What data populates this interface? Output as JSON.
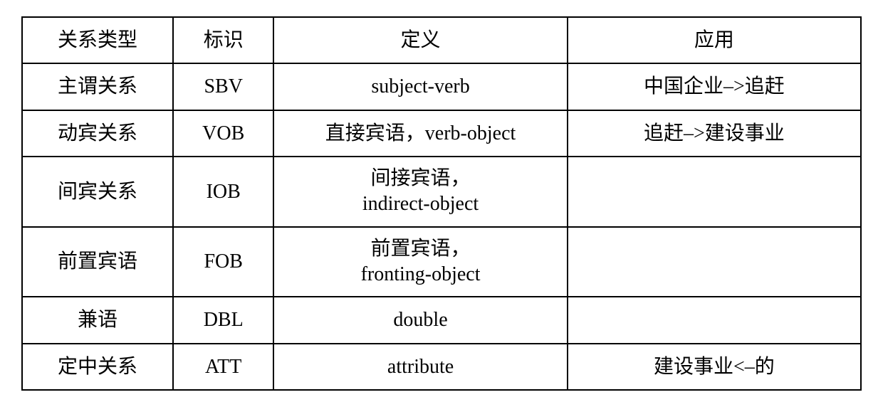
{
  "table": {
    "type": "table",
    "columns": [
      {
        "header": "关系类型",
        "width": "18%",
        "alignment": "center"
      },
      {
        "header": "标识",
        "width": "12%",
        "alignment": "center"
      },
      {
        "header": "定义",
        "width": "35%",
        "alignment": "center"
      },
      {
        "header": "应用",
        "width": "35%",
        "alignment": "center"
      }
    ],
    "rows": [
      {
        "relation": "主谓关系",
        "label": "SBV",
        "definition": "subject-verb",
        "application": "中国企业–>追赶"
      },
      {
        "relation": "动宾关系",
        "label": "VOB",
        "definition": "直接宾语，verb-object",
        "application": "追赶–>建设事业"
      },
      {
        "relation": "间宾关系",
        "label": "IOB",
        "definition_line1": "间接宾语，",
        "definition_line2": "indirect-object",
        "application": ""
      },
      {
        "relation": "前置宾语",
        "label": "FOB",
        "definition_line1": "前置宾语，",
        "definition_line2": "fronting-object",
        "application": ""
      },
      {
        "relation": "兼语",
        "label": "DBL",
        "definition": "double",
        "application": ""
      },
      {
        "relation": "定中关系",
        "label": "ATT",
        "definition": "attribute",
        "application": "建设事业<–的"
      }
    ],
    "styling": {
      "border_color": "#000000",
      "border_width": 2,
      "background_color": "#ffffff",
      "text_color": "#000000",
      "font_size": 28,
      "cell_padding": 12,
      "font_family_cjk": "SimSun",
      "font_family_latin": "Times New Roman"
    }
  }
}
